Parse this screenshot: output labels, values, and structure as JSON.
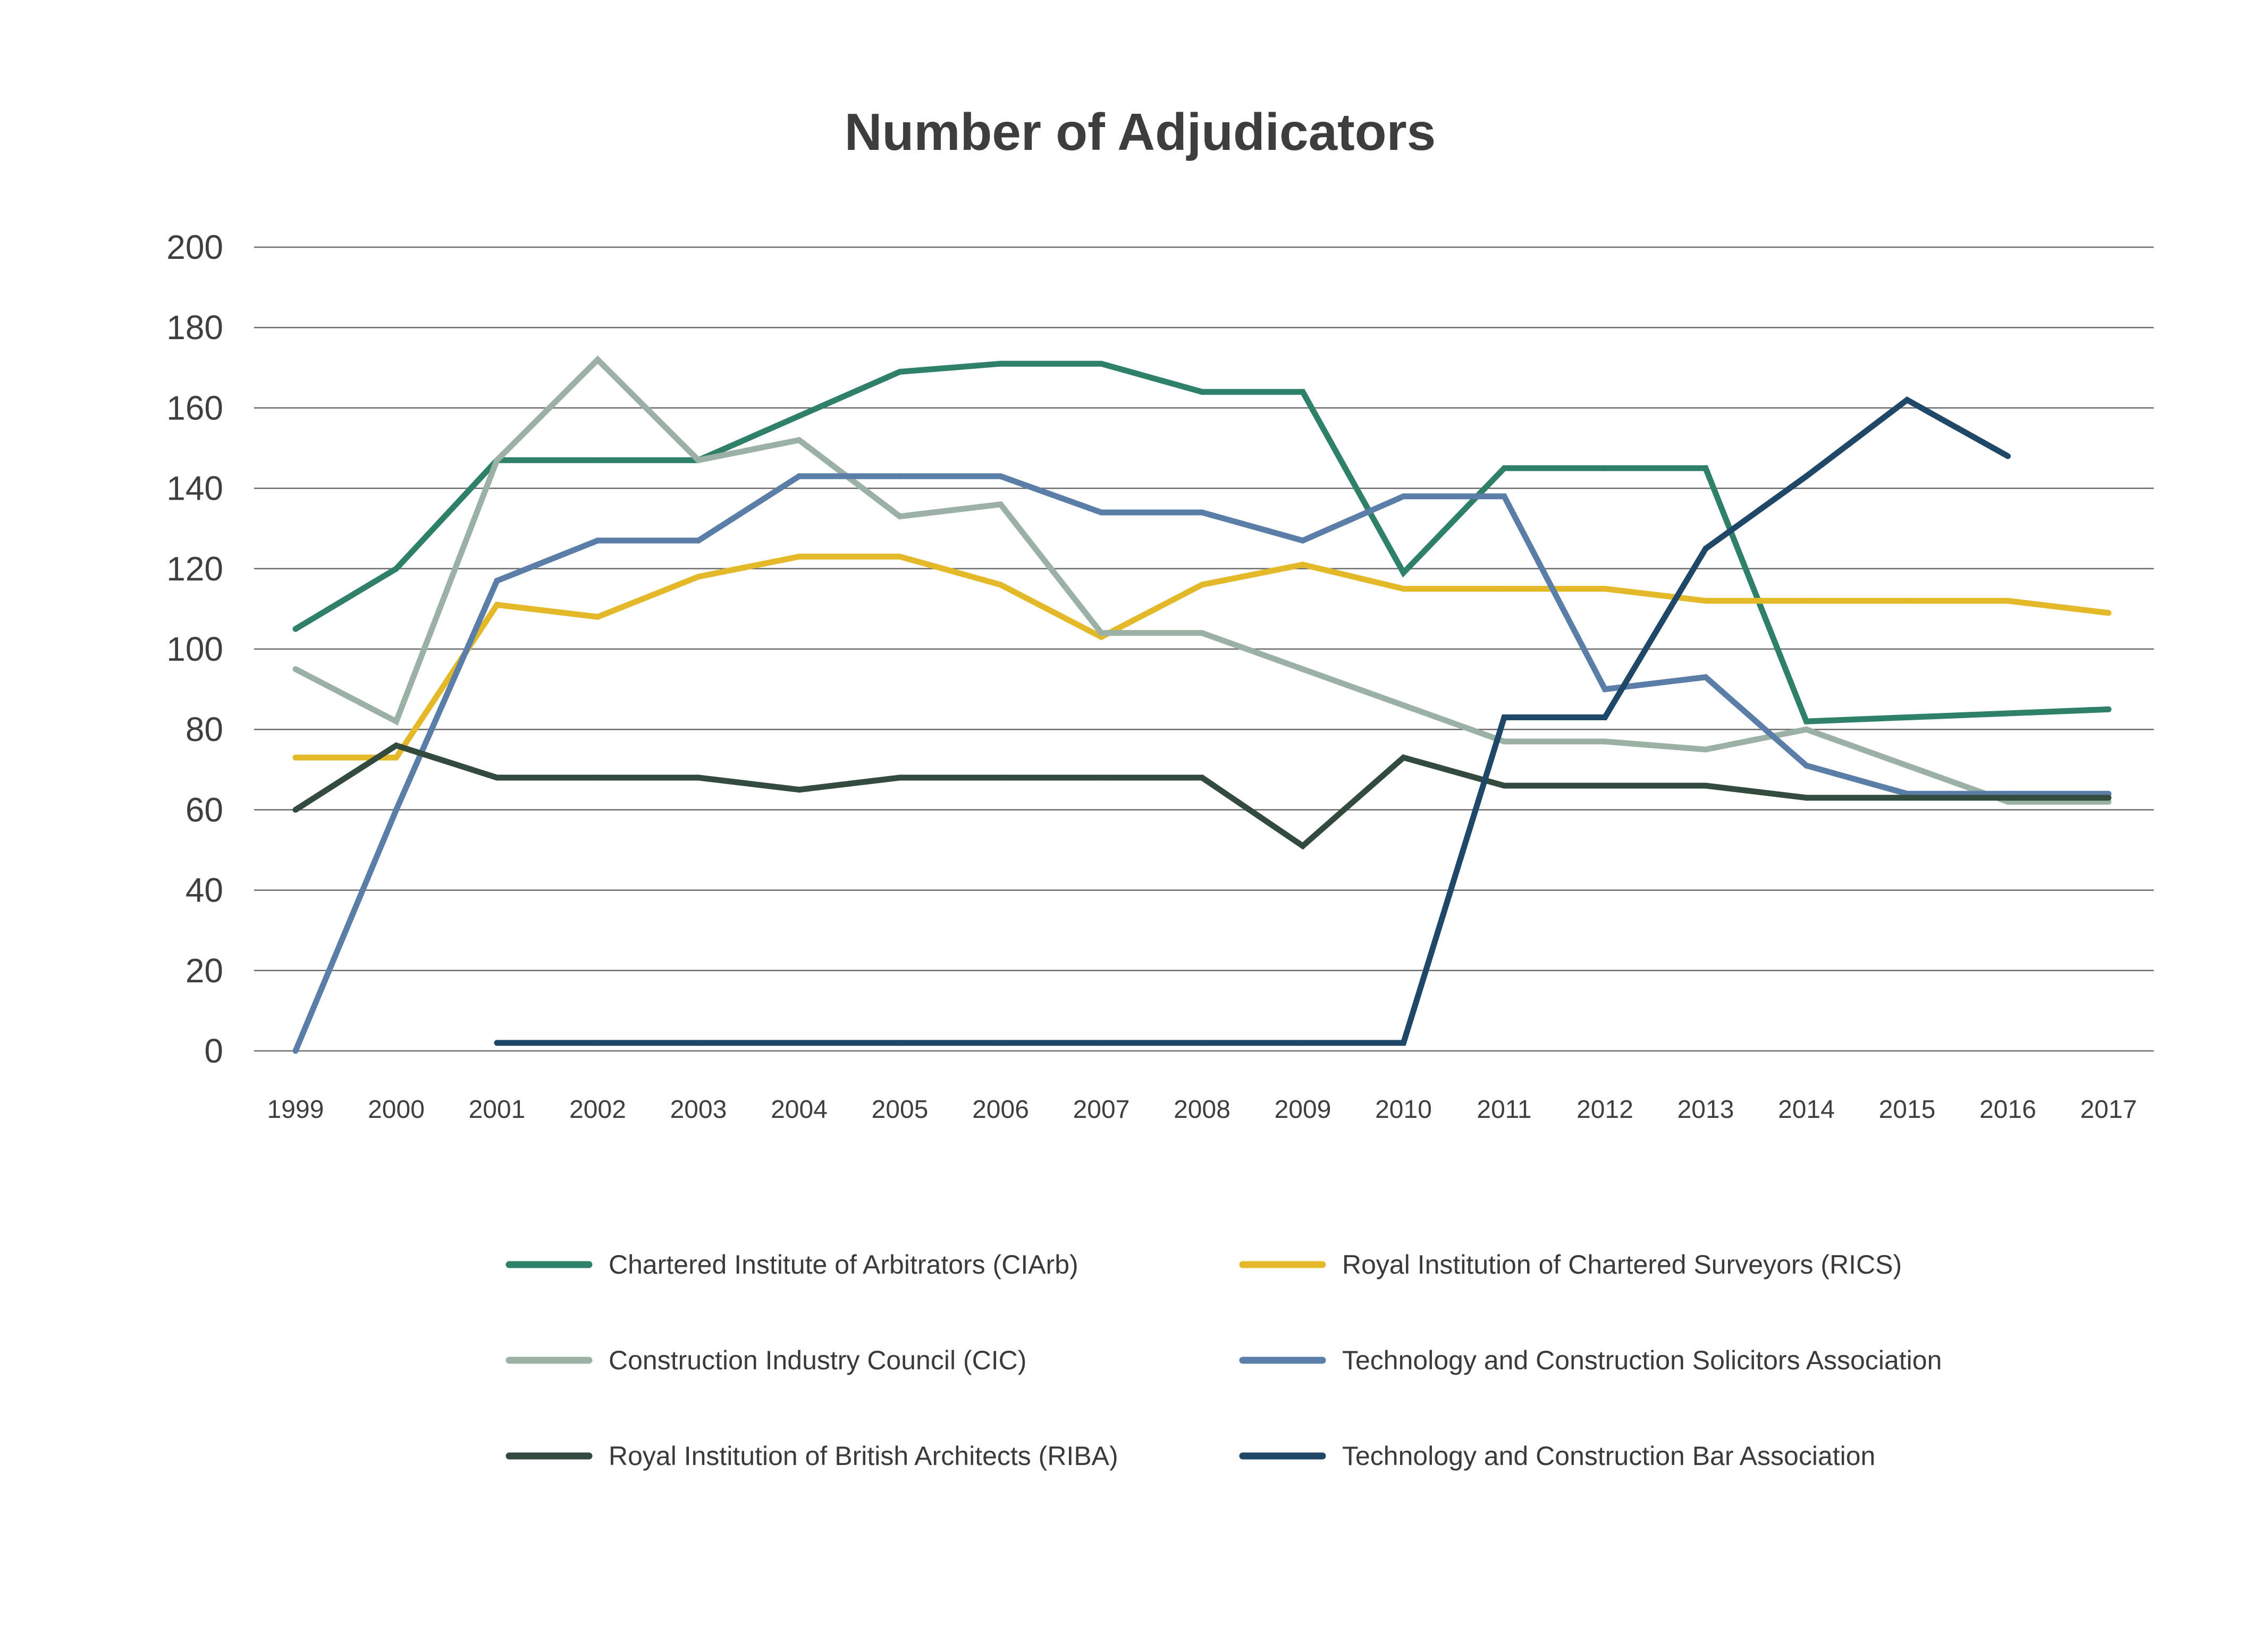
{
  "chart_data": {
    "type": "line",
    "title": "Number of Adjudicators",
    "xlabel": "",
    "ylabel": "",
    "ylim": [
      0,
      200
    ],
    "yticks": [
      "0",
      "20",
      "40",
      "60",
      "80",
      "100",
      "120",
      "140",
      "160",
      "180",
      "200"
    ],
    "grid": true,
    "legend_position": "bottom",
    "categories": [
      "1999",
      "2000",
      "2001",
      "2002",
      "2003",
      "2004",
      "2005",
      "2006",
      "2007",
      "2008",
      "2009",
      "2010",
      "2011",
      "2012",
      "2013",
      "2014",
      "2015",
      "2016",
      "2017"
    ],
    "series": [
      {
        "name": "Chartered Institute of Arbitrators (CIArb)",
        "color": "#2e8068",
        "values": [
          105,
          120,
          147,
          147,
          147,
          158,
          169,
          171,
          171,
          164,
          164,
          119,
          145,
          145,
          145,
          82,
          83,
          84,
          85
        ]
      },
      {
        "name": "Royal Institution of Chartered Surveyors (RICS)",
        "color": "#e3b92a",
        "values": [
          73,
          73,
          111,
          108,
          118,
          123,
          123,
          116,
          103,
          116,
          121,
          115,
          115,
          115,
          112,
          112,
          112,
          112,
          109
        ]
      },
      {
        "name": "Construction Industry Council (CIC)",
        "color": "#9bb1a6",
        "values": [
          95,
          82,
          147,
          172,
          147,
          152,
          133,
          136,
          104,
          104,
          95,
          86,
          77,
          77,
          75,
          80,
          71,
          62,
          62
        ]
      },
      {
        "name": "Technology and Construction Solicitors Association",
        "color": "#5b7ea8",
        "values": [
          0,
          60,
          117,
          127,
          127,
          143,
          143,
          143,
          134,
          134,
          127,
          138,
          138,
          90,
          93,
          71,
          64,
          64,
          64
        ]
      },
      {
        "name": "Royal Institution of British Architects (RIBA)",
        "color": "#334a3e",
        "values": [
          60,
          76,
          68,
          68,
          68,
          65,
          68,
          68,
          68,
          68,
          51,
          73,
          66,
          66,
          66,
          63,
          63,
          63,
          63
        ]
      },
      {
        "name": "Technology and Construction Bar Association",
        "color": "#1f4768",
        "values": [
          null,
          null,
          2,
          2,
          2,
          2,
          2,
          2,
          2,
          2,
          2,
          2,
          83,
          83,
          125,
          143,
          162,
          148,
          null
        ]
      }
    ]
  }
}
